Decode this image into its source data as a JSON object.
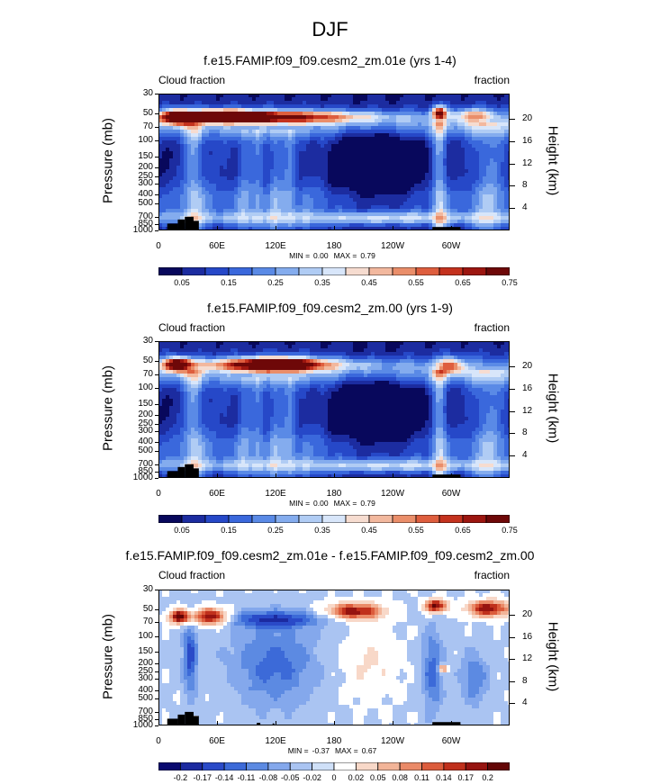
{
  "figure": {
    "title": "DJF"
  },
  "chart_data": [
    {
      "type": "heatmap",
      "title": "f.e15.FAMIP.f09_f09.cesm2_zm.01e (yrs 1-4)",
      "left_label": "Cloud fraction",
      "right_label": "fraction",
      "ylabel": "Pressure (mb)",
      "ylabel_right": "Height (km)",
      "x_ticks": [
        "0",
        "60E",
        "120E",
        "180",
        "120W",
        "60W"
      ],
      "y_ticks": [
        "30",
        "50",
        "70",
        "100",
        "150",
        "200",
        "250",
        "300",
        "400",
        "500",
        "700",
        "850",
        "1000"
      ],
      "y2_ticks": [
        "20",
        "16",
        "12",
        "8",
        "4"
      ],
      "min": "0.00",
      "max": "0.79",
      "min_label": "MIN =",
      "max_label": "MAX =",
      "colorbar_labels": [
        "0.05",
        "0.15",
        "0.25",
        "0.35",
        "0.45",
        "0.55",
        "0.65",
        "0.75"
      ]
    },
    {
      "type": "heatmap",
      "title": "f.e15.FAMIP.f09_f09.cesm2_zm.00 (yrs 1-9)",
      "left_label": "Cloud fraction",
      "right_label": "fraction",
      "ylabel": "Pressure (mb)",
      "ylabel_right": "Height (km)",
      "x_ticks": [
        "0",
        "60E",
        "120E",
        "180",
        "120W",
        "60W"
      ],
      "y_ticks": [
        "30",
        "50",
        "70",
        "100",
        "150",
        "200",
        "250",
        "300",
        "400",
        "500",
        "700",
        "850",
        "1000"
      ],
      "y2_ticks": [
        "20",
        "16",
        "12",
        "8",
        "4"
      ],
      "min": "0.00",
      "max": "0.79",
      "min_label": "MIN =",
      "max_label": "MAX =",
      "colorbar_labels": [
        "0.05",
        "0.15",
        "0.25",
        "0.35",
        "0.45",
        "0.55",
        "0.65",
        "0.75"
      ]
    },
    {
      "type": "heatmap",
      "title": "f.e15.FAMIP.f09_f09.cesm2_zm.01e - f.e15.FAMIP.f09_f09.cesm2_zm.00",
      "left_label": "Cloud fraction",
      "right_label": "fraction",
      "ylabel": "Pressure (mb)",
      "ylabel_right": "Height (km)",
      "x_ticks": [
        "0",
        "60E",
        "120E",
        "180",
        "120W",
        "60W"
      ],
      "y_ticks": [
        "30",
        "50",
        "70",
        "100",
        "150",
        "200",
        "250",
        "300",
        "400",
        "500",
        "700",
        "850",
        "1000"
      ],
      "y2_ticks": [
        "20",
        "16",
        "12",
        "8",
        "4"
      ],
      "min": "-0.37",
      "max": "0.67",
      "min_label": "MIN =",
      "max_label": "MAX =",
      "colorbar_labels": [
        "-0.2",
        "-0.17",
        "-0.14",
        "-0.11",
        "-0.08",
        "-0.05",
        "-0.02",
        "0",
        "0.02",
        "0.05",
        "0.08",
        "0.11",
        "0.14",
        "0.17",
        "0.2"
      ]
    }
  ],
  "colors": {
    "seq": [
      "#08085c",
      "#1c2ca0",
      "#2648c8",
      "#3a68dc",
      "#5a8ae6",
      "#84acee",
      "#b0ccf4",
      "#d8e6fa",
      "#f6dcd0",
      "#f2b89e",
      "#ea8e6a",
      "#de5e3e",
      "#c4321e",
      "#9c1610",
      "#6e0808"
    ],
    "div": [
      "#0a0a70",
      "#1c2aa0",
      "#2a4ac8",
      "#3c6ad8",
      "#5c8ae2",
      "#84a8ec",
      "#aac4f2",
      "#cfe0f8",
      "#ffffff",
      "#f8d8c8",
      "#f2b498",
      "#ea8a68",
      "#dc5c3c",
      "#c0301c",
      "#961410",
      "#640606"
    ]
  }
}
